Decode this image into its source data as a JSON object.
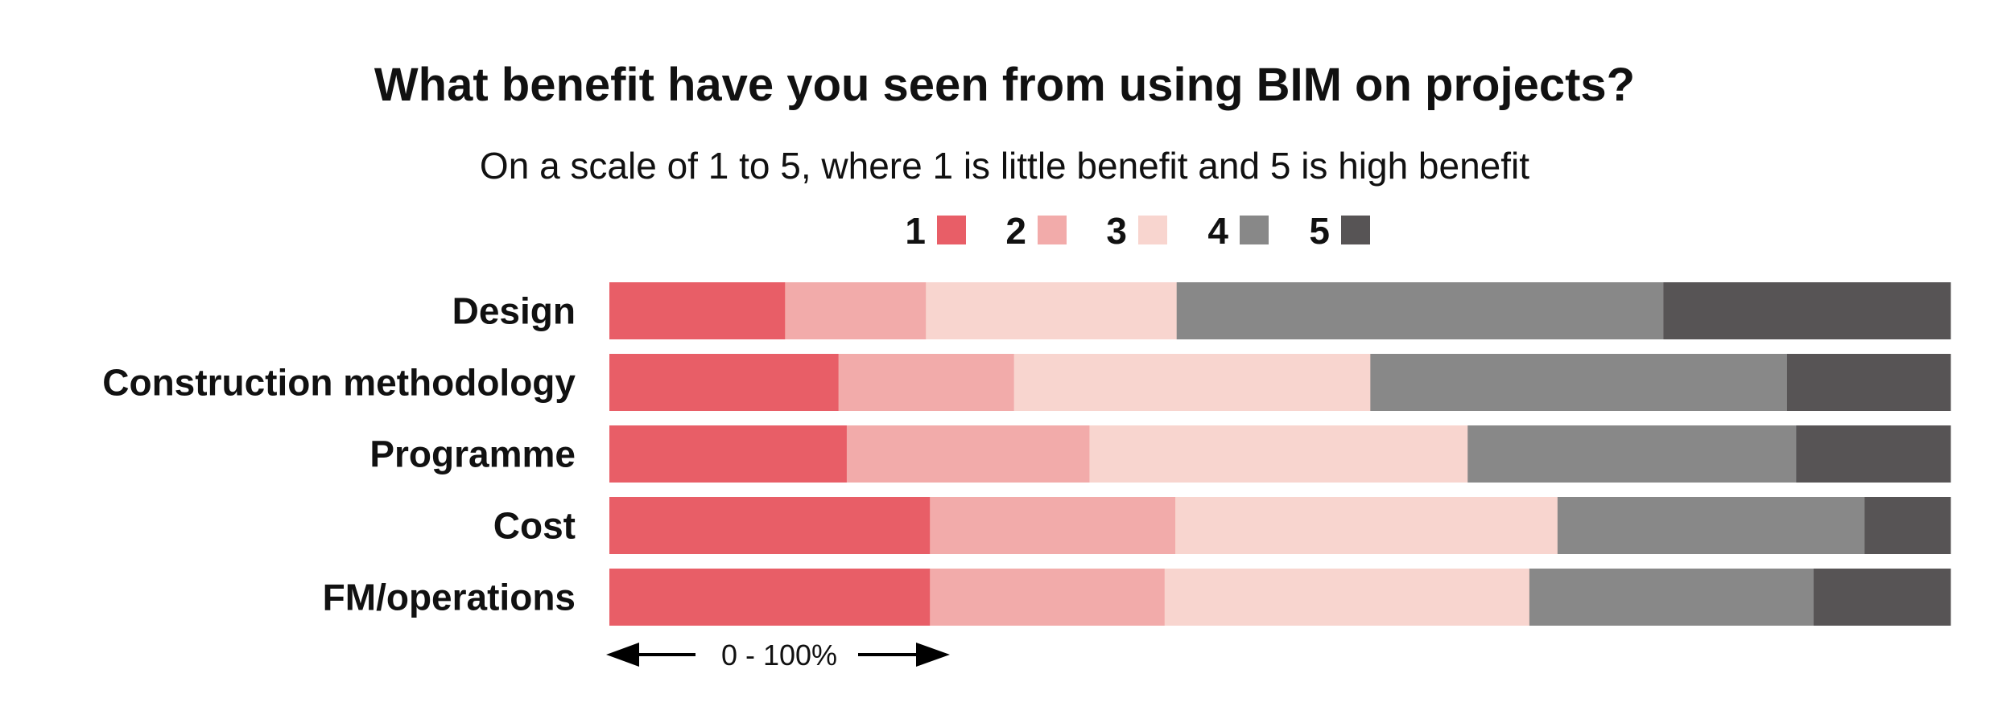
{
  "chart_data": {
    "type": "bar",
    "orientation": "horizontal",
    "stacked": true,
    "normalized": true,
    "title": "What benefit have you seen from using BIM on projects?",
    "subtitle": "On a scale of 1 to 5, where 1 is little benefit and 5 is high benefit",
    "categories": [
      "Design",
      "Construction methodology",
      "Programme",
      "Cost",
      "FM/operations"
    ],
    "series": [
      {
        "name": "1",
        "color": "#E85E67",
        "values": [
          13.1,
          17.1,
          17.7,
          23.9,
          23.9
        ]
      },
      {
        "name": "2",
        "color": "#F2ABAA",
        "values": [
          10.5,
          13.1,
          18.1,
          18.3,
          17.5
        ]
      },
      {
        "name": "3",
        "color": "#F8D5CF",
        "values": [
          18.7,
          26.6,
          28.2,
          28.5,
          27.2
        ]
      },
      {
        "name": "4",
        "color": "#888888",
        "values": [
          36.3,
          31.1,
          24.5,
          22.9,
          21.2
        ]
      },
      {
        "name": "5",
        "color": "#575455",
        "values": [
          21.4,
          12.2,
          11.5,
          6.4,
          10.2
        ]
      }
    ],
    "xlabel": "0 - 100%",
    "xlim": [
      0,
      100
    ],
    "grid": false,
    "legend_position": "top"
  }
}
